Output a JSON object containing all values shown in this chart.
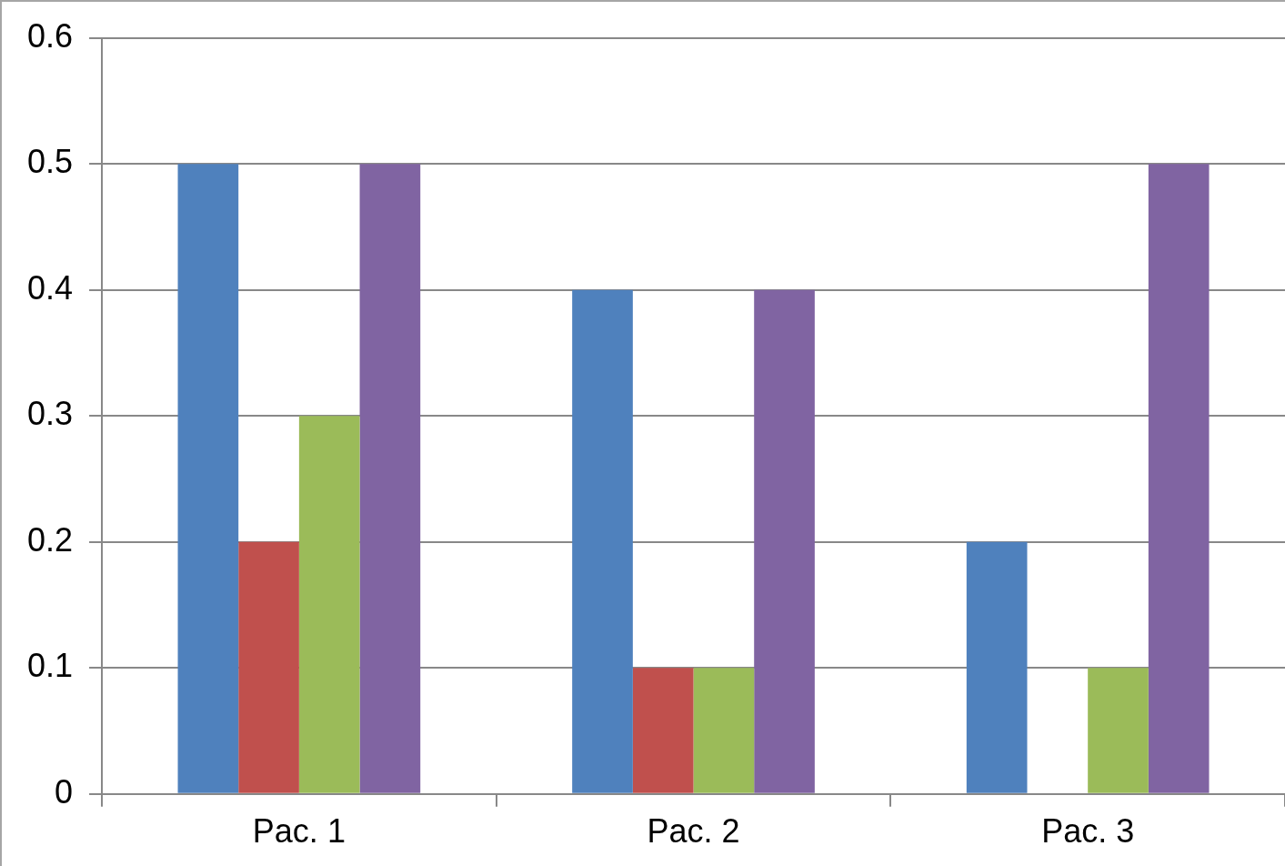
{
  "chart_data": {
    "type": "bar",
    "categories": [
      "Pac. 1",
      "Pac. 2",
      "Pac. 3"
    ],
    "series": [
      {
        "color": "#4f81bd",
        "values": [
          0.5,
          0.4,
          0.2
        ]
      },
      {
        "color": "#c0504d",
        "values": [
          0.2,
          0.1,
          0
        ]
      },
      {
        "color": "#9bbb59",
        "values": [
          0.3,
          0.1,
          0.1
        ]
      },
      {
        "color": "#8064a2",
        "values": [
          0.5,
          0.4,
          0.5
        ]
      }
    ],
    "ylim": [
      0,
      0.6
    ],
    "yticks": [
      0,
      0.1,
      0.2,
      0.3,
      0.4,
      0.5,
      0.6
    ],
    "grid": "y",
    "legend": false
  }
}
